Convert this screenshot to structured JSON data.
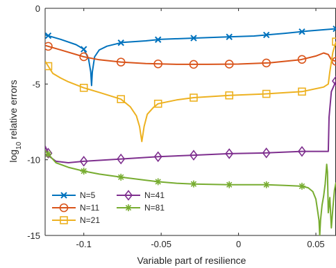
{
  "chart_data": {
    "type": "line",
    "xlabel": "Variable part of resilience",
    "ylabel": {
      "base": "log",
      "sub": "10",
      "rest": " relative errors"
    },
    "xlim": [
      -0.125,
      0.063
    ],
    "ylim": [
      -15,
      0
    ],
    "xticks": [
      -0.1,
      -0.05,
      0,
      0.05
    ],
    "xtick_labels": [
      "-0.1",
      "-0.05",
      "0",
      "0.05"
    ],
    "yticks": [
      0,
      -5,
      -10,
      -15
    ],
    "ytick_labels": [
      "0",
      "-5",
      "-10",
      "-15"
    ],
    "grid": false,
    "legend_position": "bottom-left",
    "series": [
      {
        "name": "N=5",
        "color": "#0072BD",
        "marker": "x",
        "points": [
          [
            -0.125,
            -1.75
          ],
          [
            -0.115,
            -2.05
          ],
          [
            -0.105,
            -2.4
          ],
          [
            -0.1,
            -2.7
          ],
          [
            -0.097,
            -3.3
          ],
          [
            -0.0955,
            -4.2
          ],
          [
            -0.095,
            -5.1
          ],
          [
            -0.0945,
            -4.2
          ],
          [
            -0.093,
            -3.2
          ],
          [
            -0.09,
            -2.75
          ],
          [
            -0.085,
            -2.5
          ],
          [
            -0.075,
            -2.25
          ],
          [
            -0.06,
            -2.15
          ],
          [
            -0.05,
            -2.05
          ],
          [
            -0.03,
            -1.97
          ],
          [
            -0.01,
            -1.9
          ],
          [
            0.01,
            -1.83
          ],
          [
            0.03,
            -1.65
          ],
          [
            0.045,
            -1.5
          ],
          [
            0.063,
            -1.35
          ]
        ],
        "marker_x": [
          -0.123,
          -0.1,
          -0.076,
          -0.052,
          -0.029,
          -0.006,
          0.018,
          0.041,
          0.063
        ]
      },
      {
        "name": "N=11",
        "color": "#D95319",
        "marker": "o",
        "points": [
          [
            -0.125,
            -2.45
          ],
          [
            -0.115,
            -2.75
          ],
          [
            -0.1,
            -3.2
          ],
          [
            -0.09,
            -3.4
          ],
          [
            -0.076,
            -3.55
          ],
          [
            -0.06,
            -3.65
          ],
          [
            -0.04,
            -3.7
          ],
          [
            -0.02,
            -3.7
          ],
          [
            0,
            -3.68
          ],
          [
            0.02,
            -3.6
          ],
          [
            0.04,
            -3.4
          ],
          [
            0.05,
            -3.15
          ],
          [
            0.055,
            -2.95
          ],
          [
            0.058,
            -3.05
          ],
          [
            0.06,
            -3.4
          ],
          [
            0.063,
            -3.5
          ]
        ],
        "marker_x": [
          -0.123,
          -0.1,
          -0.076,
          -0.052,
          -0.029,
          -0.006,
          0.018,
          0.041,
          0.063
        ]
      },
      {
        "name": "N=21",
        "color": "#EDB120",
        "marker": "s",
        "points": [
          [
            -0.125,
            -3.5
          ],
          [
            -0.12,
            -4.3
          ],
          [
            -0.115,
            -4.6
          ],
          [
            -0.11,
            -4.85
          ],
          [
            -0.1,
            -5.25
          ],
          [
            -0.09,
            -5.55
          ],
          [
            -0.076,
            -6.0
          ],
          [
            -0.07,
            -6.5
          ],
          [
            -0.066,
            -7.1
          ],
          [
            -0.064,
            -7.8
          ],
          [
            -0.0625,
            -8.8
          ],
          [
            -0.061,
            -7.8
          ],
          [
            -0.059,
            -7.0
          ],
          [
            -0.055,
            -6.55
          ],
          [
            -0.052,
            -6.3
          ],
          [
            -0.04,
            -6.05
          ],
          [
            -0.029,
            -5.9
          ],
          [
            -0.006,
            -5.75
          ],
          [
            0.018,
            -5.65
          ],
          [
            0.041,
            -5.5
          ],
          [
            0.055,
            -5.2
          ],
          [
            0.058,
            -5.0
          ],
          [
            0.059,
            -4.2
          ],
          [
            0.061,
            -2.9
          ],
          [
            0.063,
            -2.2
          ]
        ],
        "marker_x": [
          -0.123,
          -0.1,
          -0.076,
          -0.052,
          -0.029,
          -0.006,
          0.018,
          0.041,
          0.063
        ]
      },
      {
        "name": "N=41",
        "color": "#7E2F8E",
        "marker": "d",
        "points": [
          [
            -0.125,
            -9.1
          ],
          [
            -0.122,
            -9.8
          ],
          [
            -0.118,
            -10.1
          ],
          [
            -0.11,
            -10.2
          ],
          [
            -0.1,
            -10.1
          ],
          [
            -0.076,
            -9.95
          ],
          [
            -0.052,
            -9.8
          ],
          [
            -0.029,
            -9.7
          ],
          [
            -0.006,
            -9.6
          ],
          [
            0.018,
            -9.55
          ],
          [
            0.041,
            -9.45
          ],
          [
            0.058,
            -9.45
          ],
          [
            0.0585,
            -7.2
          ],
          [
            0.06,
            -5.5
          ],
          [
            0.063,
            -4.8
          ]
        ],
        "marker_x": [
          -0.123,
          -0.1,
          -0.076,
          -0.052,
          -0.029,
          -0.006,
          0.018,
          0.041,
          0.063
        ]
      },
      {
        "name": "N=81",
        "color": "#77AC30",
        "marker": "*",
        "points": [
          [
            -0.125,
            -9.4
          ],
          [
            -0.118,
            -10.2
          ],
          [
            -0.11,
            -10.5
          ],
          [
            -0.1,
            -10.75
          ],
          [
            -0.09,
            -10.95
          ],
          [
            -0.076,
            -11.15
          ],
          [
            -0.06,
            -11.35
          ],
          [
            -0.052,
            -11.45
          ],
          [
            -0.04,
            -11.55
          ],
          [
            -0.029,
            -11.6
          ],
          [
            -0.006,
            -11.65
          ],
          [
            0.018,
            -11.65
          ],
          [
            0.03,
            -11.7
          ],
          [
            0.041,
            -11.75
          ],
          [
            0.045,
            -11.85
          ],
          [
            0.048,
            -12.1
          ],
          [
            0.05,
            -12.6
          ],
          [
            0.051,
            -13.3
          ],
          [
            0.052,
            -14.0
          ],
          [
            0.0525,
            -15.0
          ],
          [
            0.053,
            -14.0
          ],
          [
            0.054,
            -13.0
          ],
          [
            0.055,
            -12.4
          ],
          [
            0.056,
            -11.6
          ],
          [
            0.057,
            -10.3
          ],
          [
            0.0575,
            -10.8
          ],
          [
            0.058,
            -13.5
          ],
          [
            0.059,
            -12.5
          ],
          [
            0.06,
            -14.5
          ],
          [
            0.061,
            -13.2
          ],
          [
            0.062,
            -12.0
          ],
          [
            0.063,
            -11.5
          ]
        ],
        "marker_x": [
          -0.123,
          -0.1,
          -0.076,
          -0.052,
          -0.029,
          -0.006,
          0.018,
          0.041
        ]
      }
    ]
  }
}
